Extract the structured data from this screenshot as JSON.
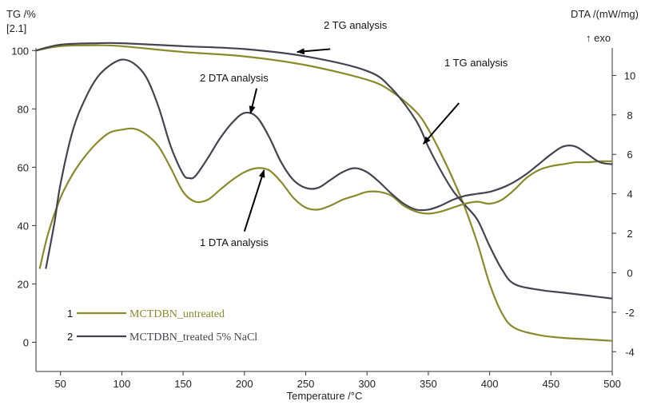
{
  "chart_data": {
    "type": "line",
    "y_left_label": "TG /%",
    "y_left_sublabel": "[2.1]",
    "y_right_label": "DTA /(mW/mg)",
    "y_right_sublabel": "↑ exo",
    "xlabel": "Temperature /°C",
    "xlim": [
      30,
      500
    ],
    "ylim_left": [
      -10,
      105
    ],
    "ylim_right": [
      -5,
      12
    ],
    "x_ticks": [
      50,
      100,
      150,
      200,
      250,
      300,
      350,
      400,
      450,
      500
    ],
    "y_left_ticks": [
      0,
      20,
      40,
      60,
      80,
      100
    ],
    "y_right_ticks": [
      -4,
      -2,
      0,
      2,
      4,
      6,
      8,
      10
    ],
    "colors": {
      "untreated": "#8a8a2a",
      "treated": "#45434f",
      "axis": "#333333",
      "arrow": "#000000"
    },
    "series": [
      {
        "key": "untreated",
        "axis": "left",
        "kind": "TG",
        "x": [
          30,
          50,
          80,
          100,
          150,
          200,
          250,
          300,
          320,
          340,
          350,
          360,
          370,
          380,
          390,
          400,
          410,
          420,
          440,
          460,
          480,
          500
        ],
        "y": [
          100,
          101.5,
          101.8,
          101.5,
          99.5,
          98,
          95,
          90,
          86,
          79,
          73,
          65,
          56,
          46,
          34,
          20,
          10,
          5,
          2.5,
          1.5,
          1,
          0.5
        ]
      },
      {
        "key": "treated",
        "axis": "left",
        "kind": "TG",
        "x": [
          30,
          50,
          80,
          100,
          150,
          200,
          250,
          300,
          320,
          340,
          350,
          360,
          370,
          380,
          390,
          400,
          410,
          420,
          440,
          460,
          480,
          500
        ],
        "y": [
          100,
          102,
          102.5,
          102.5,
          101.5,
          100.5,
          98,
          93,
          87,
          76,
          67,
          59,
          52,
          47,
          42,
          33,
          25,
          20,
          18,
          17,
          16,
          15
        ]
      },
      {
        "key": "untreated",
        "axis": "right",
        "kind": "DTA",
        "x": [
          33,
          40,
          50,
          60,
          70,
          80,
          90,
          100,
          110,
          120,
          130,
          140,
          150,
          160,
          170,
          180,
          190,
          200,
          210,
          220,
          230,
          240,
          250,
          260,
          270,
          280,
          290,
          300,
          310,
          320,
          330,
          340,
          350,
          360,
          370,
          380,
          390,
          400,
          410,
          420,
          430,
          440,
          450,
          460,
          470,
          480,
          490,
          500
        ],
        "y": [
          0.2,
          2.0,
          3.8,
          5.0,
          5.9,
          6.6,
          7.1,
          7.25,
          7.3,
          7.0,
          6.4,
          5.3,
          4.1,
          3.6,
          3.7,
          4.2,
          4.7,
          5.1,
          5.3,
          5.2,
          4.6,
          3.8,
          3.3,
          3.2,
          3.4,
          3.7,
          3.9,
          4.1,
          4.1,
          3.9,
          3.4,
          3.1,
          3.0,
          3.1,
          3.3,
          3.5,
          3.6,
          3.5,
          3.7,
          4.2,
          4.8,
          5.2,
          5.4,
          5.5,
          5.6,
          5.6,
          5.65,
          5.65
        ]
      },
      {
        "key": "treated",
        "axis": "right",
        "kind": "DTA",
        "x": [
          38,
          45,
          50,
          60,
          70,
          80,
          90,
          100,
          110,
          120,
          130,
          140,
          150,
          155,
          160,
          170,
          180,
          190,
          200,
          210,
          220,
          230,
          240,
          250,
          260,
          270,
          280,
          290,
          300,
          310,
          320,
          330,
          340,
          350,
          360,
          370,
          380,
          390,
          400,
          410,
          420,
          430,
          440,
          450,
          460,
          470,
          480,
          490,
          500
        ],
        "y": [
          0.2,
          2.5,
          4.5,
          7.2,
          8.8,
          9.9,
          10.5,
          10.8,
          10.6,
          9.9,
          8.4,
          6.4,
          5.0,
          4.8,
          4.9,
          5.8,
          6.8,
          7.6,
          8.1,
          7.9,
          6.9,
          5.6,
          4.7,
          4.3,
          4.3,
          4.7,
          5.1,
          5.3,
          5.1,
          4.6,
          4.0,
          3.5,
          3.2,
          3.2,
          3.4,
          3.7,
          3.9,
          4.0,
          4.1,
          4.3,
          4.6,
          5.0,
          5.5,
          6.0,
          6.4,
          6.4,
          6.0,
          5.6,
          5.5
        ]
      }
    ],
    "annotations": [
      {
        "text": "2 TG analysis",
        "tx": 405,
        "ty": 110,
        "ax": 270,
        "ay": 100.5,
        "bx": 243,
        "by": 99.5,
        "axis": "left"
      },
      {
        "text": "1 TG analysis",
        "tx": 410,
        "ty": 86,
        "ax": 375,
        "ay": 82,
        "bx": 346,
        "by": 68,
        "axis": "left"
      },
      {
        "text": "2 DTA analysis",
        "tx": 210,
        "ty": 90,
        "ax": 210,
        "ay": 87,
        "bx": 205,
        "by": 78.5,
        "axis": "left"
      },
      {
        "text": "1 DTA analysis",
        "tx": 200,
        "ty": 40,
        "ax": 200,
        "ay": 38,
        "bx": 216,
        "by": 59,
        "axis": "left"
      }
    ],
    "legend": [
      {
        "num": "1",
        "label": "MCTDBN_untreated",
        "key": "untreated"
      },
      {
        "num": "2",
        "label": "MCTDBN_treated 5% NaCl",
        "key": "treated"
      }
    ]
  }
}
